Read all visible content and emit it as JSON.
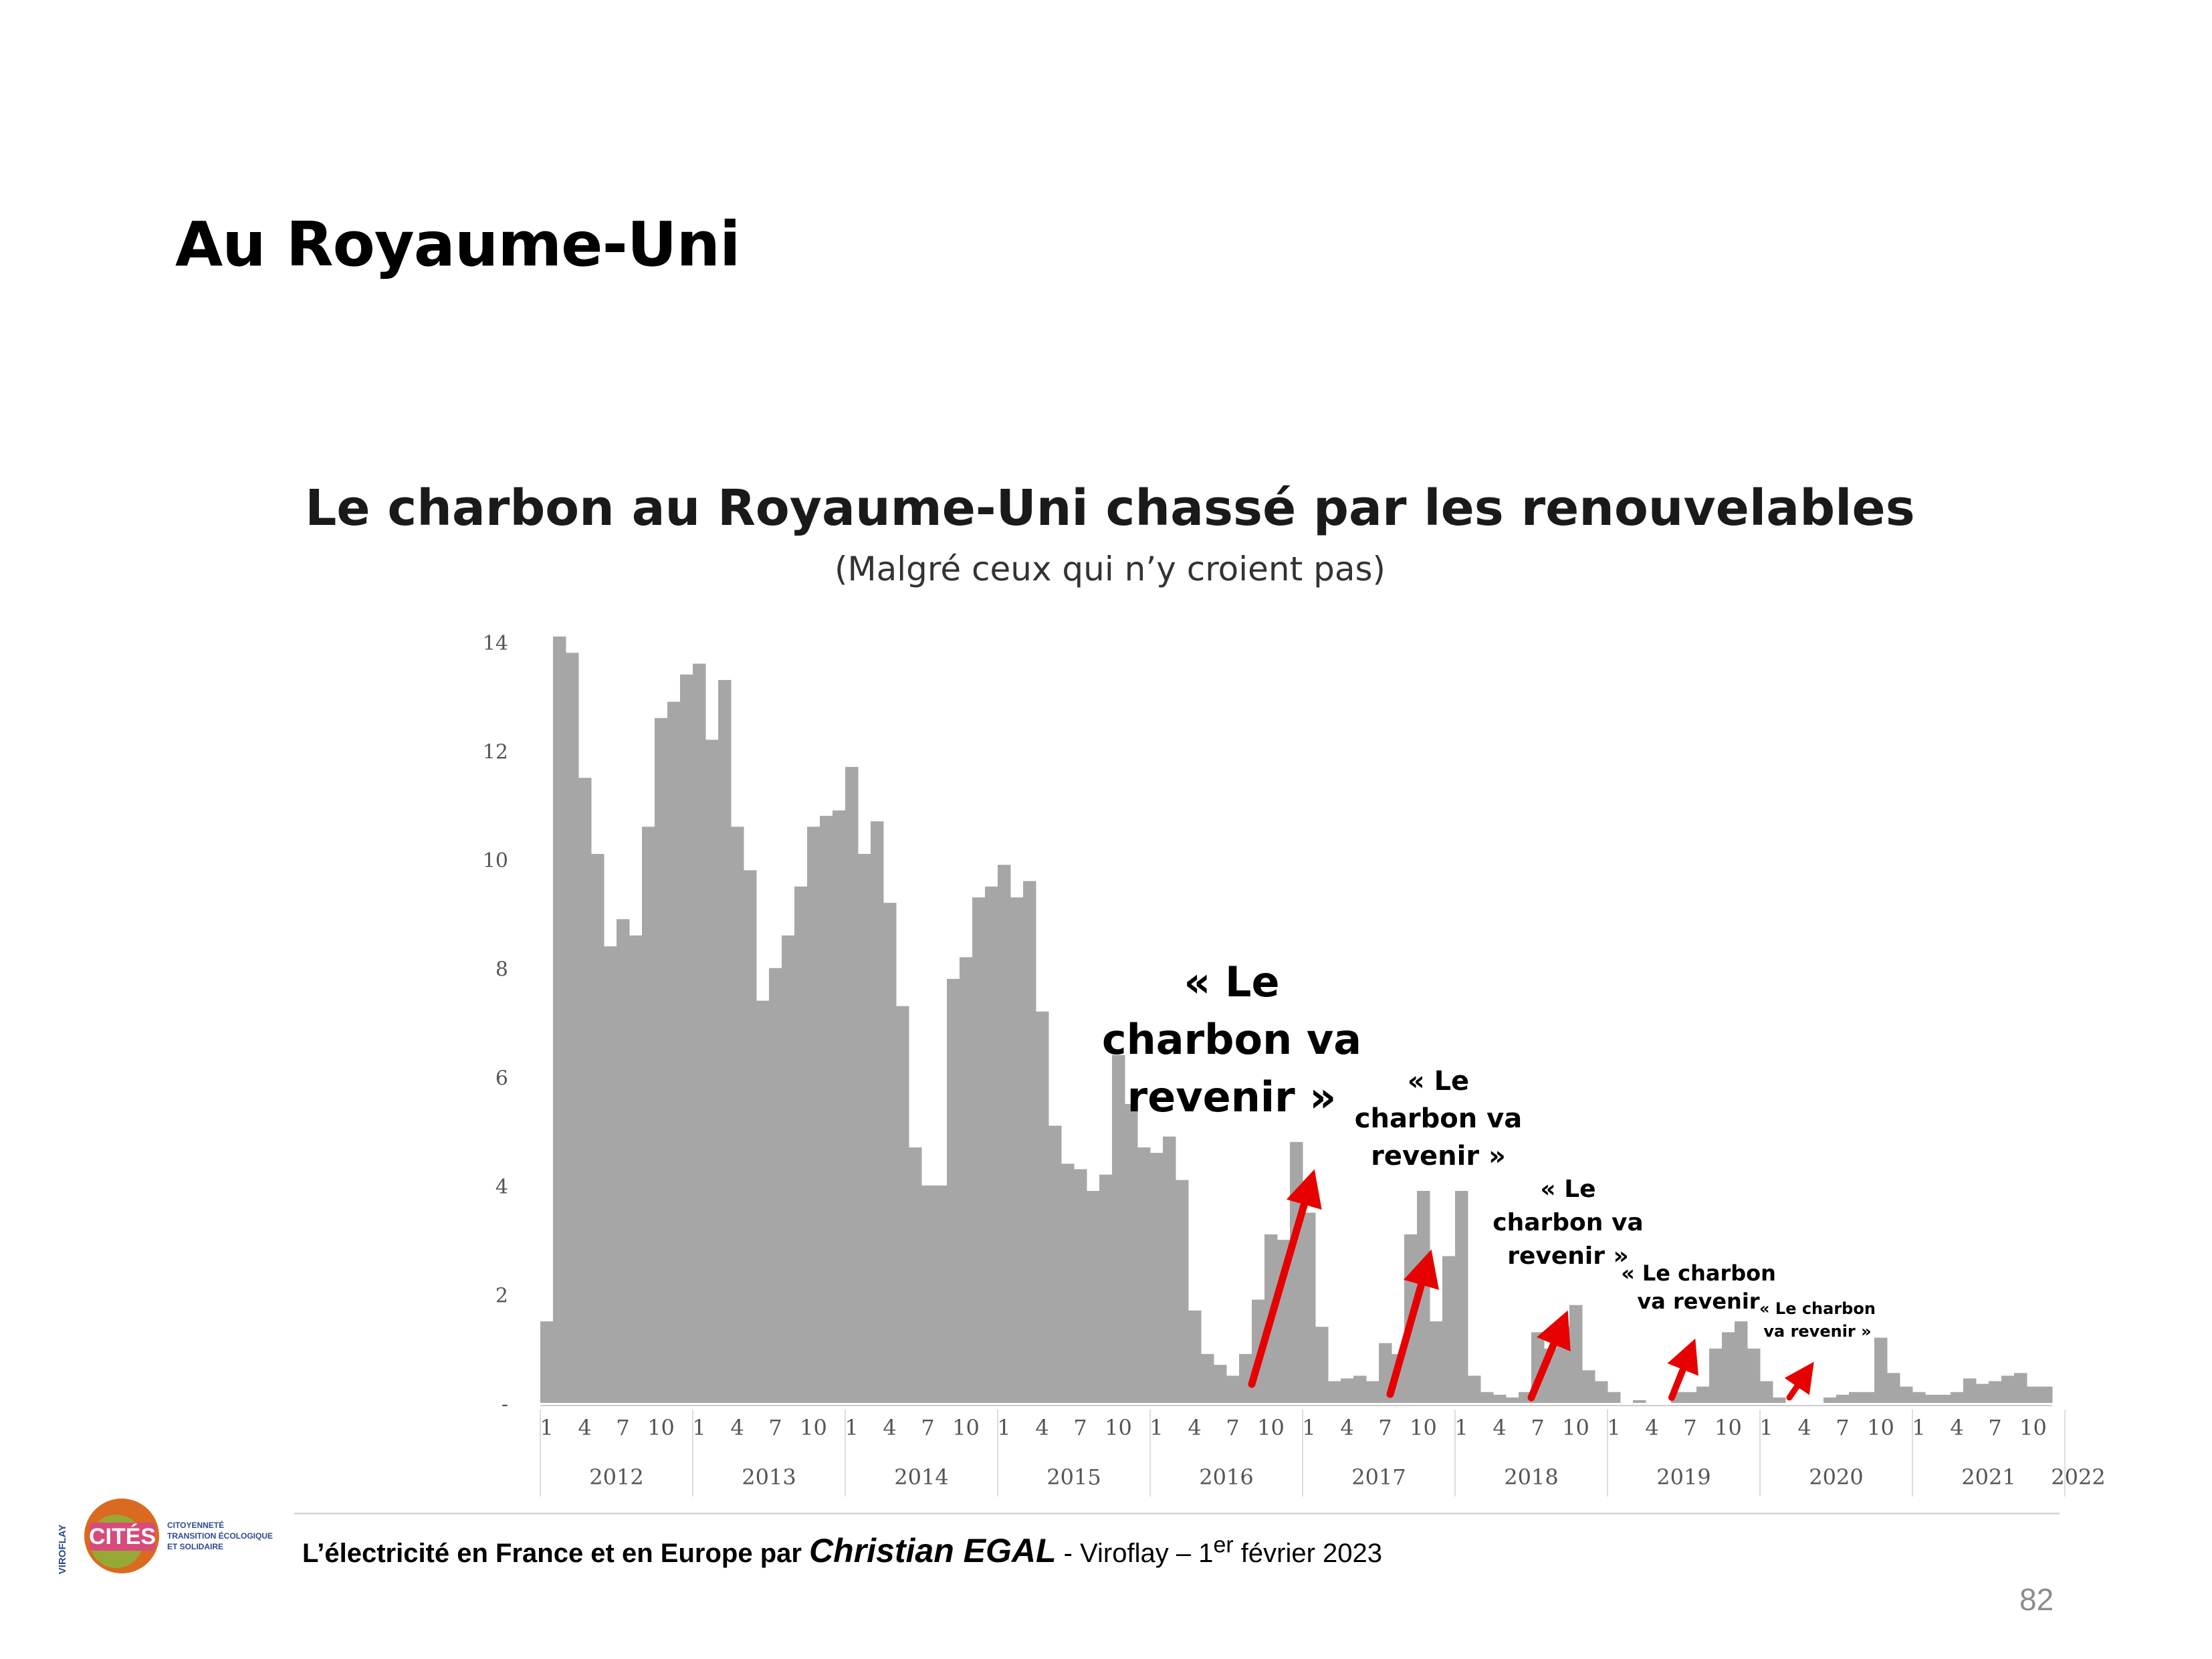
{
  "slide": {
    "title": "Au Royaume-Uni",
    "page_number": "82"
  },
  "footer": {
    "part1": "L’électricité en France et en Europe par ",
    "author": "Christian EGAL",
    "part2": " - Viroflay – 1",
    "sup": "er",
    "part3": " février 2023"
  },
  "logo": {
    "name": "CITÉS",
    "side_text": "VIROFLAY",
    "tagline": [
      "CITOYENNETÉ",
      "TRANSITION ÉCOLOGIQUE",
      "ET SOLIDAIRE"
    ]
  },
  "colors": {
    "bar": "#a6a6a6",
    "arrow": "#e60000",
    "text": "#000000",
    "axis_text": "#555555"
  },
  "chart_data": {
    "type": "bar",
    "title": "Le charbon au Royaume-Uni chassé par les renouvelables",
    "subtitle": "(Malgré ceux qui n’y croient pas)",
    "xlabel": "",
    "ylabel": "",
    "ylim": [
      0,
      14
    ],
    "y_ticks": [
      "-",
      "2",
      "4",
      "6",
      "8",
      "10",
      "12",
      "14"
    ],
    "month_ticks": [
      "1",
      "4",
      "7",
      "10"
    ],
    "years": [
      "2012",
      "2013",
      "2014",
      "2015",
      "2016",
      "2017",
      "2018",
      "2019",
      "2020",
      "2021",
      "2022"
    ],
    "grid": false,
    "legend": "none",
    "values": [
      1.5,
      14.1,
      13.8,
      11.5,
      10.1,
      8.4,
      8.9,
      8.6,
      10.6,
      12.6,
      12.9,
      13.4,
      13.6,
      12.2,
      13.3,
      10.6,
      9.8,
      7.4,
      8.0,
      8.6,
      9.5,
      10.6,
      10.8,
      10.9,
      11.7,
      10.1,
      10.7,
      9.2,
      7.3,
      4.7,
      4.0,
      4.0,
      7.8,
      8.2,
      9.3,
      9.5,
      9.9,
      9.3,
      9.6,
      7.2,
      5.1,
      4.4,
      4.3,
      3.9,
      4.2,
      6.4,
      5.5,
      4.7,
      4.6,
      4.9,
      4.1,
      1.7,
      0.9,
      0.7,
      0.5,
      0.9,
      1.9,
      3.1,
      3.0,
      4.8,
      3.5,
      1.4,
      0.4,
      0.45,
      0.5,
      0.4,
      1.1,
      0.9,
      3.1,
      3.9,
      1.5,
      2.7,
      3.9,
      0.5,
      0.2,
      0.15,
      0.1,
      0.2,
      1.3,
      1.0,
      1.4,
      1.8,
      0.6,
      0.4,
      0.2,
      0.0,
      0.05,
      0.0,
      0.0,
      0.2,
      0.2,
      0.3,
      1.0,
      1.3,
      1.5,
      1.0,
      0.4,
      0.1,
      0.0,
      0.0,
      0.0,
      0.1,
      0.15,
      0.2,
      0.2,
      1.2,
      0.55,
      0.3,
      0.2,
      0.15,
      0.15,
      0.2,
      0.45,
      0.35,
      0.4,
      0.5,
      0.55,
      0.3,
      0.3
    ],
    "annotations": [
      {
        "lines": [
          "« Le",
          "charbon va",
          "revenir »"
        ]
      },
      {
        "lines": [
          "« Le",
          "charbon va",
          "revenir »"
        ]
      },
      {
        "lines": [
          "« Le",
          "charbon va",
          "revenir »"
        ]
      },
      {
        "lines": [
          "« Le charbon",
          "va revenir"
        ]
      },
      {
        "lines": [
          "« Le charbon",
          "va revenir »"
        ]
      }
    ]
  }
}
